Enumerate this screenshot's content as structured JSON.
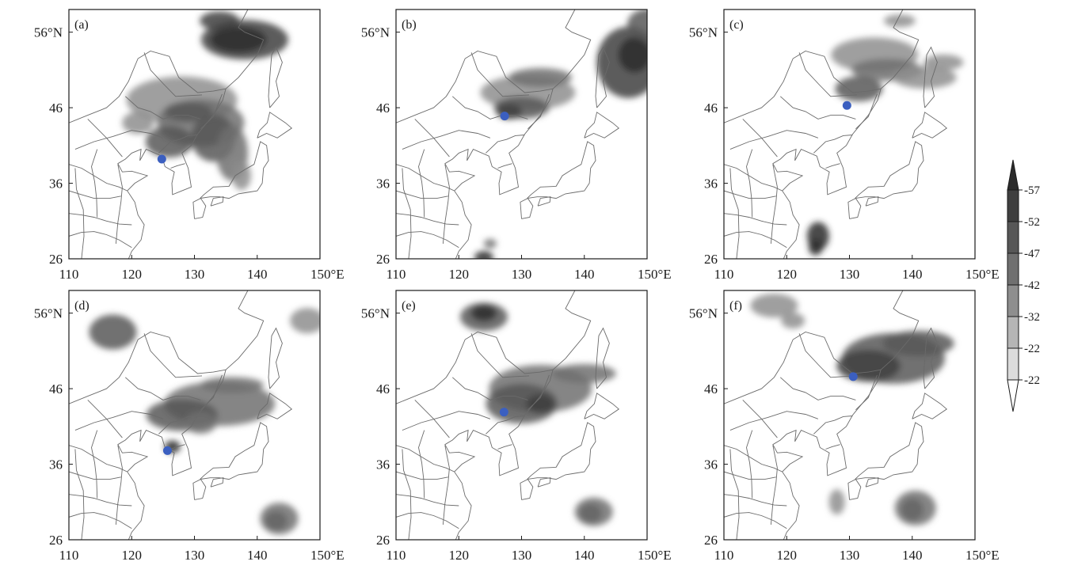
{
  "figure": {
    "panels": [
      {
        "label": "(a)",
        "center": [
          124.8,
          39.2
        ],
        "band_dir": "arc-east"
      },
      {
        "label": "(b)",
        "center": [
          127.3,
          44.9
        ],
        "band_dir": "arc-northeast"
      },
      {
        "label": "(c)",
        "center": [
          129.6,
          46.3
        ],
        "band_dir": "arc-north"
      },
      {
        "label": "(d)",
        "center": [
          125.7,
          37.8
        ],
        "band_dir": "arc-east"
      },
      {
        "label": "(e)",
        "center": [
          127.2,
          42.9
        ],
        "band_dir": "arc-east"
      },
      {
        "label": "(f)",
        "center": [
          130.6,
          47.6
        ],
        "band_dir": "arc-east"
      }
    ],
    "lon_ticks": [
      "110",
      "120",
      "130",
      "140",
      "150°E"
    ],
    "lat_ticks": [
      "56°N",
      "46",
      "36",
      "26"
    ],
    "lon_values": [
      110,
      120,
      130,
      140,
      150
    ],
    "lat_values": [
      56,
      46,
      36,
      26
    ],
    "extent": {
      "lon": [
        110,
        150
      ],
      "lat": [
        26,
        59
      ]
    },
    "marker_color": "#3b5fc0"
  },
  "colorbar": {
    "labels": [
      "-57",
      "-52",
      "-47",
      "-42",
      "-32",
      "-22",
      "-22"
    ],
    "shades": [
      "#2b2b2b",
      "#3f3f3f",
      "#575757",
      "#707070",
      "#8e8e8e",
      "#b5b5b5",
      "#dcdcdc",
      "#ffffff"
    ]
  }
}
